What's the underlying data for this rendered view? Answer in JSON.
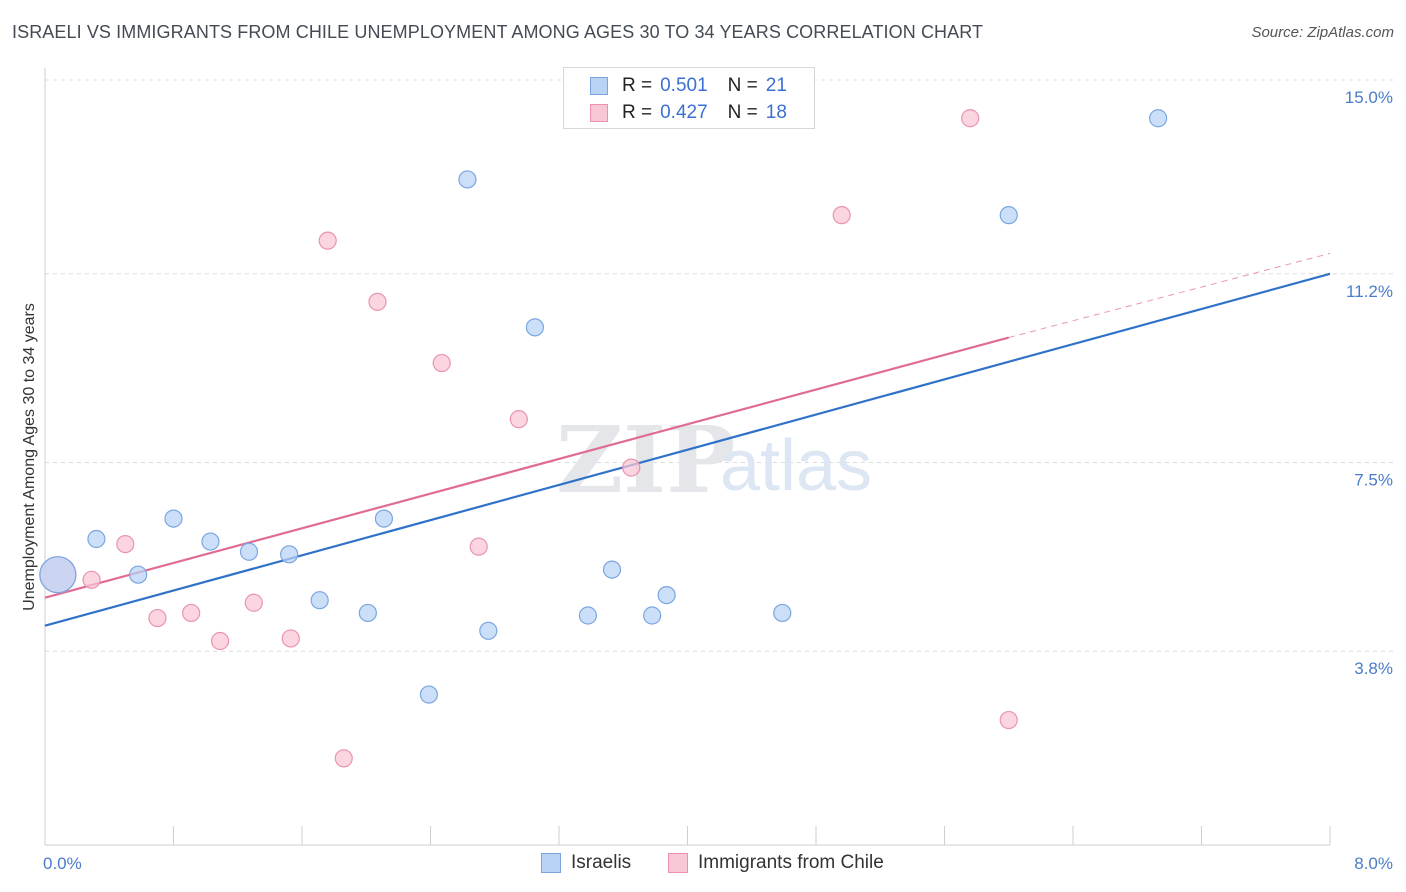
{
  "title": "ISRAELI VS IMMIGRANTS FROM CHILE UNEMPLOYMENT AMONG AGES 30 TO 34 YEARS CORRELATION CHART",
  "source": "Source: ZipAtlas.com",
  "watermark": {
    "zip": "ZIP",
    "atlas": "atlas"
  },
  "legend": {
    "israelis": {
      "r_label": "R =",
      "r_value": "0.501",
      "n_label": "N =",
      "n_value": "21"
    },
    "chile": {
      "r_label": "R =",
      "r_value": "0.427",
      "n_label": "N =",
      "n_value": "18"
    }
  },
  "colors": {
    "israelis_fill": "#b8d3f5",
    "israelis_stroke": "#7aa6e0",
    "israelis_line": "#2f72c8",
    "chile_fill": "#f9c6d5",
    "chile_stroke": "#eb93ae",
    "chile_line": "#e06b93"
  },
  "chart_data": {
    "type": "scatter",
    "title": "ISRAELI VS IMMIGRANTS FROM CHILE UNEMPLOYMENT AMONG AGES 30 TO 34 YEARS CORRELATION CHART",
    "xlabel": "",
    "ylabel": "Unemployment Among Ages 30 to 34 years",
    "xlim": [
      0.0,
      8.0
    ],
    "ylim": [
      0.0,
      15.0
    ],
    "x_tick_labels": [
      "0.0%",
      "8.0%"
    ],
    "y_ticks": [
      3.8,
      7.5,
      11.2,
      15.0
    ],
    "y_tick_labels": [
      "3.8%",
      "7.5%",
      "11.2%",
      "15.0%"
    ],
    "grid": true,
    "legend_position": "top-center",
    "series": [
      {
        "name": "Israelis",
        "points": [
          {
            "x": 0.08,
            "y": 5.3,
            "size": "large"
          },
          {
            "x": 0.32,
            "y": 6.0
          },
          {
            "x": 0.58,
            "y": 5.3
          },
          {
            "x": 0.8,
            "y": 6.4
          },
          {
            "x": 1.03,
            "y": 5.95
          },
          {
            "x": 1.27,
            "y": 5.75
          },
          {
            "x": 1.52,
            "y": 5.7
          },
          {
            "x": 1.71,
            "y": 4.8
          },
          {
            "x": 2.01,
            "y": 4.55
          },
          {
            "x": 2.11,
            "y": 6.4
          },
          {
            "x": 2.39,
            "y": 2.95
          },
          {
            "x": 2.63,
            "y": 13.05
          },
          {
            "x": 2.76,
            "y": 4.2
          },
          {
            "x": 3.05,
            "y": 10.15
          },
          {
            "x": 3.38,
            "y": 4.5
          },
          {
            "x": 3.53,
            "y": 5.4
          },
          {
            "x": 3.78,
            "y": 4.5
          },
          {
            "x": 3.87,
            "y": 4.9
          },
          {
            "x": 4.59,
            "y": 4.55
          },
          {
            "x": 6.0,
            "y": 12.35
          },
          {
            "x": 6.93,
            "y": 14.25
          }
        ],
        "trend": {
          "x": [
            0.0,
            8.0
          ],
          "y": [
            4.3,
            11.2
          ]
        }
      },
      {
        "name": "Immigrants from Chile",
        "points": [
          {
            "x": 0.08,
            "y": 5.3,
            "size": "large"
          },
          {
            "x": 0.29,
            "y": 5.2
          },
          {
            "x": 0.5,
            "y": 5.9
          },
          {
            "x": 0.7,
            "y": 4.45
          },
          {
            "x": 0.91,
            "y": 4.55
          },
          {
            "x": 1.09,
            "y": 4.0
          },
          {
            "x": 1.3,
            "y": 4.75
          },
          {
            "x": 1.53,
            "y": 4.05
          },
          {
            "x": 1.76,
            "y": 11.85
          },
          {
            "x": 1.86,
            "y": 1.7
          },
          {
            "x": 2.07,
            "y": 10.65
          },
          {
            "x": 2.47,
            "y": 9.45
          },
          {
            "x": 2.7,
            "y": 5.85
          },
          {
            "x": 2.95,
            "y": 8.35
          },
          {
            "x": 3.65,
            "y": 7.4
          },
          {
            "x": 4.96,
            "y": 12.35
          },
          {
            "x": 5.76,
            "y": 14.25
          },
          {
            "x": 6.0,
            "y": 2.45
          }
        ],
        "trend": {
          "x": [
            0.0,
            6.0
          ],
          "y": [
            4.85,
            9.95
          ]
        },
        "trend_dashed_extension": {
          "x": [
            6.0,
            8.0
          ],
          "y": [
            9.95,
            11.6
          ]
        }
      }
    ]
  },
  "bottom_legend": {
    "israelis": "Israelis",
    "chile": "Immigrants from Chile"
  }
}
